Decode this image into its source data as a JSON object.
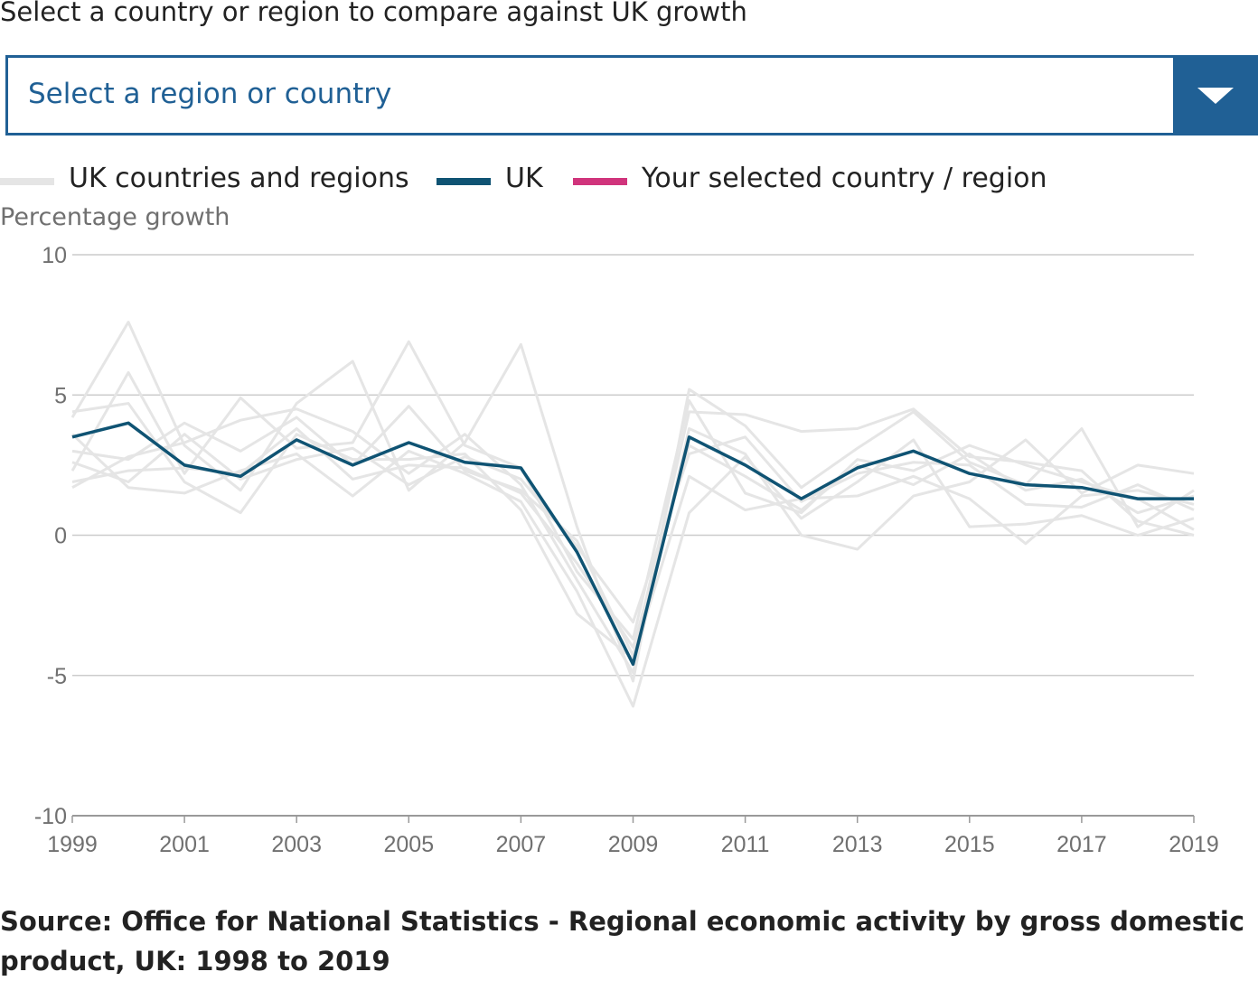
{
  "prompt": "Select a country or region to compare against UK growth",
  "select": {
    "placeholder": "Select a region or country",
    "button_icon": "triangle-down-icon"
  },
  "legend": [
    {
      "label": "UK countries and regions",
      "color": "#e5e5e5"
    },
    {
      "label": "UK",
      "color": "#0f5373"
    },
    {
      "label": "Your selected country / region",
      "color": "#d0347c"
    }
  ],
  "source": "Source: Office for National Statistics - Regional economic activity by gross domestic product, UK: 1998 to 2019",
  "colors": {
    "accent": "#206095",
    "uk_line": "#0f5373",
    "region_lines": "#e5e5e5",
    "selected_line": "#d0347c",
    "gridline": "#cccccc"
  },
  "chart_data": {
    "type": "line",
    "title": "",
    "xlabel": "",
    "ylabel": "Percentage growth",
    "x": [
      1999,
      2000,
      2001,
      2002,
      2003,
      2004,
      2005,
      2006,
      2007,
      2008,
      2009,
      2010,
      2011,
      2012,
      2013,
      2014,
      2015,
      2016,
      2017,
      2018,
      2019
    ],
    "xticks": [
      "1999",
      "2001",
      "2003",
      "2005",
      "2007",
      "2009",
      "2011",
      "2013",
      "2015",
      "2017",
      "2019"
    ],
    "yticks": [
      "10",
      "5",
      "0",
      "-5",
      "-10"
    ],
    "ytick_values": [
      10,
      5,
      0,
      -5,
      -10
    ],
    "ylim": [
      -10,
      10
    ],
    "grid": true,
    "legend_position": "top-left",
    "series": [
      {
        "name": "UK",
        "values": [
          3.5,
          4.0,
          2.5,
          2.1,
          3.4,
          2.5,
          3.3,
          2.6,
          2.4,
          -0.6,
          -4.6,
          3.5,
          2.5,
          1.3,
          2.4,
          3.0,
          2.2,
          1.8,
          1.7,
          1.3,
          1.3
        ]
      }
    ],
    "region_series": [
      {
        "values": [
          4.2,
          7.6,
          3.2,
          1.6,
          4.7,
          6.2,
          1.6,
          3.3,
          6.8,
          0.3,
          -5.2,
          5.2,
          3.9,
          1.7,
          3.1,
          4.4,
          2.6,
          1.8,
          3.8,
          0.3,
          1.6
        ]
      },
      {
        "values": [
          2.3,
          5.8,
          2.2,
          4.9,
          3.1,
          3.3,
          6.9,
          3.2,
          2.4,
          -1.3,
          -3.7,
          4.8,
          1.5,
          0.8,
          2.7,
          2.3,
          3.2,
          2.5,
          1.9,
          1.3,
          0.2
        ]
      },
      {
        "values": [
          3.0,
          2.7,
          4.0,
          3.0,
          4.2,
          2.5,
          4.6,
          2.3,
          1.6,
          -0.2,
          -4.3,
          4.4,
          4.3,
          3.7,
          3.8,
          4.5,
          2.8,
          2.6,
          2.3,
          0.5,
          0.0
        ]
      },
      {
        "values": [
          1.7,
          2.8,
          3.3,
          4.1,
          4.5,
          3.7,
          2.2,
          3.6,
          1.8,
          -1.6,
          -4.9,
          3.8,
          2.9,
          0.0,
          -0.5,
          1.4,
          1.9,
          3.4,
          1.5,
          2.5,
          2.2
        ]
      },
      {
        "values": [
          4.4,
          4.7,
          1.9,
          0.8,
          3.6,
          2.7,
          2.7,
          2.9,
          0.9,
          -2.8,
          -4.4,
          2.1,
          0.9,
          1.3,
          1.4,
          2.1,
          1.3,
          -0.3,
          1.4,
          1.6,
          1.1
        ]
      },
      {
        "values": [
          3.6,
          1.7,
          1.5,
          2.3,
          2.9,
          1.4,
          3.0,
          2.2,
          1.2,
          -2.0,
          -6.1,
          0.8,
          2.8,
          0.6,
          1.9,
          3.4,
          0.3,
          0.4,
          0.7,
          0.0,
          0.6
        ]
      },
      {
        "values": [
          2.6,
          1.9,
          3.6,
          2.0,
          2.7,
          3.1,
          1.8,
          2.8,
          2.0,
          -0.4,
          -3.1,
          2.9,
          3.5,
          1.2,
          2.2,
          2.6,
          2.5,
          1.1,
          1.0,
          1.8,
          0.9
        ]
      },
      {
        "values": [
          1.9,
          2.3,
          2.4,
          2.2,
          3.8,
          2.0,
          2.5,
          2.4,
          1.5,
          -1.0,
          -4.0,
          3.2,
          2.1,
          0.9,
          2.5,
          1.8,
          2.9,
          1.6,
          2.0,
          0.8,
          1.4
        ]
      }
    ]
  }
}
